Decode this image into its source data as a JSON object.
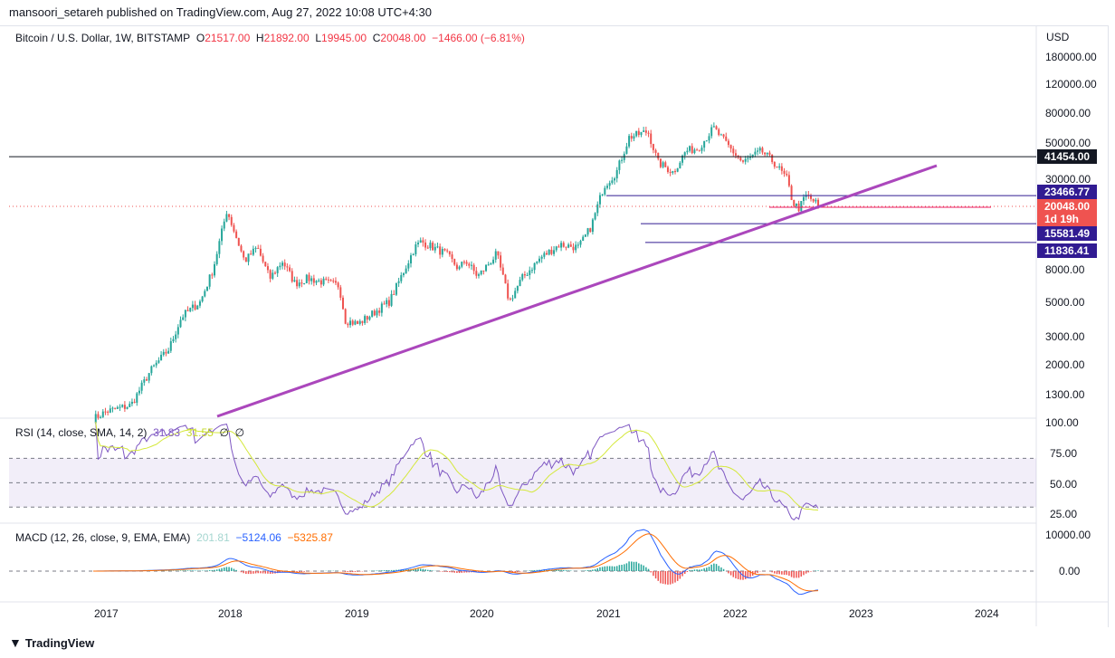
{
  "publisher_line": "mansoori_setareh published on TradingView.com, Aug 27, 2022 10:08 UTC+4:30",
  "legend": {
    "symbol": "Bitcoin / U.S. Dollar, 1W, BITSTAMP",
    "o_label": "O",
    "open": "21517.00",
    "h_label": "H",
    "high": "21892.00",
    "l_label": "L",
    "low": "19945.00",
    "c_label": "C",
    "close": "20048.00",
    "change": "−1466.00 (−6.81%)"
  },
  "currency": "USD",
  "price_axis": [
    "180000.00",
    "120000.00",
    "80000.00",
    "50000.00",
    "30000.00",
    "8000.00",
    "5000.00",
    "3000.00",
    "2000.00",
    "1300.00"
  ],
  "price_tags": {
    "level1": "41454.00",
    "level2": "23466.77",
    "last": "20048.00",
    "countdown": "1d 19h",
    "level3": "15581.49",
    "level4": "11836.41"
  },
  "rsi": {
    "label": "RSI (14, close, SMA, 14, 2)",
    "rsi_value": "31.83",
    "sma_value": "31.55",
    "v3": "∅",
    "v4": "∅",
    "axis": [
      "100.00",
      "75.00",
      "50.00",
      "25.00"
    ]
  },
  "macd": {
    "label": "MACD (12, 26, close, 9, EMA, EMA)",
    "hist": "201.81",
    "macd": "−5124.06",
    "signal": "−5325.87",
    "axis": [
      "10000.00",
      "0.00"
    ]
  },
  "time_axis": [
    "2017",
    "2018",
    "2019",
    "2020",
    "2021",
    "2022",
    "2023",
    "2024"
  ],
  "footer": "TradingView",
  "colors": {
    "up": "#26a69a",
    "down": "#ef5350",
    "trend": "#ab47bc",
    "level": "#311b92",
    "rsi": "#7e57c2",
    "rsi_sma": "#d4e83a",
    "macd": "#2962ff",
    "signal": "#ff6d00"
  },
  "chart_data": {
    "type": "candlestick",
    "scale": "log",
    "keypoints": [
      [
        2016.9,
        900
      ],
      [
        2017.0,
        1000
      ],
      [
        2017.2,
        1100
      ],
      [
        2017.35,
        1800
      ],
      [
        2017.5,
        2500
      ],
      [
        2017.6,
        4000
      ],
      [
        2017.75,
        5000
      ],
      [
        2017.85,
        8000
      ],
      [
        2017.96,
        19000
      ],
      [
        2018.1,
        9000
      ],
      [
        2018.2,
        11000
      ],
      [
        2018.3,
        7000
      ],
      [
        2018.4,
        9000
      ],
      [
        2018.5,
        6500
      ],
      [
        2018.6,
        7000
      ],
      [
        2018.85,
        6300
      ],
      [
        2018.9,
        3800
      ],
      [
        2019.0,
        3600
      ],
      [
        2019.25,
        5000
      ],
      [
        2019.45,
        11000
      ],
      [
        2019.5,
        12000
      ],
      [
        2019.7,
        10000
      ],
      [
        2019.8,
        8000
      ],
      [
        2019.85,
        9200
      ],
      [
        2019.95,
        7200
      ],
      [
        2020.1,
        10000
      ],
      [
        2020.2,
        5000
      ],
      [
        2020.3,
        7000
      ],
      [
        2020.45,
        9500
      ],
      [
        2020.6,
        11500
      ],
      [
        2020.75,
        11000
      ],
      [
        2020.85,
        15000
      ],
      [
        2020.95,
        27000
      ],
      [
        2021.05,
        33000
      ],
      [
        2021.15,
        55000
      ],
      [
        2021.3,
        60000
      ],
      [
        2021.38,
        38000
      ],
      [
        2021.5,
        33000
      ],
      [
        2021.6,
        45000
      ],
      [
        2021.7,
        47000
      ],
      [
        2021.82,
        63000
      ],
      [
        2021.95,
        47000
      ],
      [
        2022.05,
        38000
      ],
      [
        2022.2,
        45000
      ],
      [
        2022.3,
        38000
      ],
      [
        2022.4,
        30000
      ],
      [
        2022.45,
        21000
      ],
      [
        2022.5,
        19500
      ],
      [
        2022.55,
        23500
      ],
      [
        2022.62,
        21500
      ],
      [
        2022.66,
        20048
      ]
    ],
    "levels": [
      41454,
      23466.77,
      15581.49,
      11836.41
    ],
    "trendline": [
      [
        2017.9,
        1000
      ],
      [
        2023.6,
        38000
      ]
    ]
  }
}
